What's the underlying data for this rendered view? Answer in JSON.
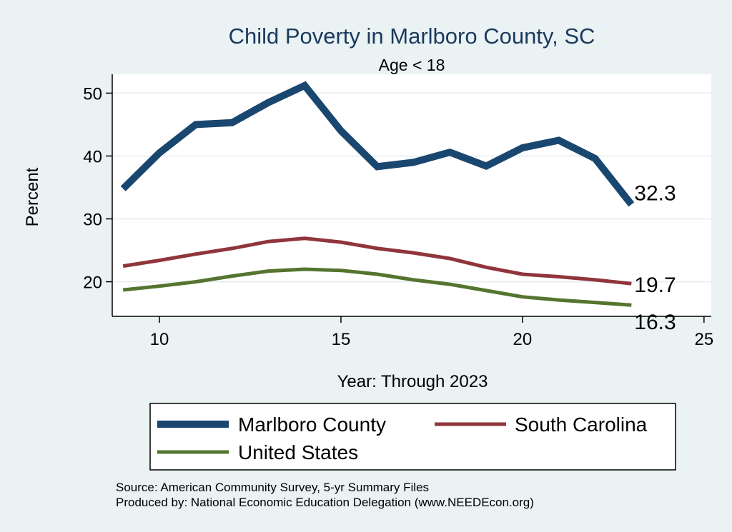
{
  "chart_data": {
    "type": "line",
    "title": "Child Poverty in Marlboro County, SC",
    "subtitle": "Age < 18",
    "xlabel": "Year: Through 2023",
    "ylabel": "Percent",
    "xlim": [
      8.7,
      25.2
    ],
    "ylim": [
      14.5,
      53
    ],
    "x_ticks": [
      10,
      15,
      20,
      25
    ],
    "y_ticks": [
      20,
      30,
      40,
      50
    ],
    "grid": true,
    "legend_position": "bottom",
    "x": [
      9,
      10,
      11,
      12,
      13,
      14,
      15,
      16,
      17,
      18,
      19,
      20,
      21,
      22,
      23
    ],
    "series": [
      {
        "name": "Marlboro County",
        "color": "#1a476f",
        "values": [
          34.8,
          40.5,
          45.0,
          45.3,
          48.5,
          51.2,
          44.0,
          38.3,
          39.0,
          40.6,
          38.4,
          41.3,
          42.5,
          39.6,
          32.3
        ],
        "end_label": "32.3"
      },
      {
        "name": "South Carolina",
        "color": "#90353b",
        "values": [
          22.5,
          23.4,
          24.4,
          25.3,
          26.4,
          26.9,
          26.3,
          25.3,
          24.6,
          23.7,
          22.3,
          21.2,
          20.8,
          20.3,
          19.7
        ],
        "end_label": "19.7"
      },
      {
        "name": "United States",
        "color": "#55752f",
        "values": [
          18.7,
          19.3,
          20.0,
          20.9,
          21.7,
          22.0,
          21.8,
          21.2,
          20.3,
          19.6,
          18.6,
          17.6,
          17.1,
          16.7,
          16.3
        ],
        "end_label": "16.3"
      }
    ]
  },
  "footer": {
    "source": "Source: American Community Survey, 5-yr Summary Files",
    "produced_by": "Produced by: National Economic Education Delegation (www.NEEDEcon.org)"
  }
}
